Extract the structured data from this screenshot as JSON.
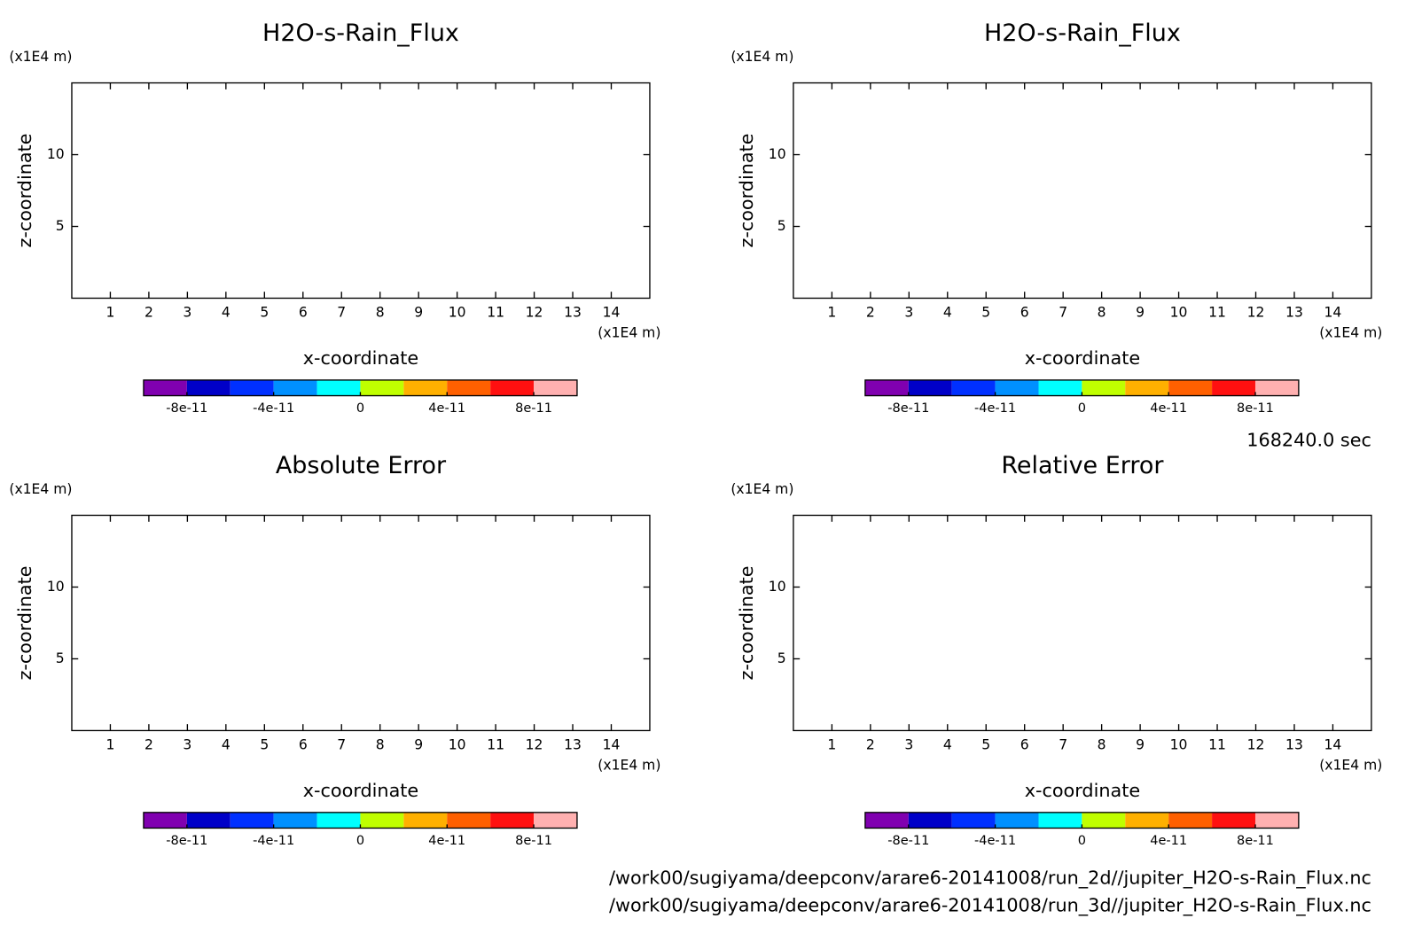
{
  "chart_data": [
    {
      "type": "contour",
      "title": "H2O-s-Rain_Flux",
      "xlabel": "x-coordinate",
      "ylabel": "z-coordinate",
      "xunit": "(x1E4 m)",
      "yunit": "(x1E4 m)",
      "xlim": [
        0,
        15
      ],
      "ylim": [
        0,
        15
      ],
      "xticks": [
        1,
        2,
        3,
        4,
        5,
        6,
        7,
        8,
        9,
        10,
        11,
        12,
        13,
        14
      ],
      "yticks": [
        5,
        10
      ],
      "colorbar": {
        "levels": [
          -1e-10,
          -8e-11,
          -6e-11,
          -4e-11,
          -2e-11,
          0,
          2e-11,
          4e-11,
          6e-11,
          8e-11,
          1e-10
        ],
        "colors": [
          "#8000b0",
          "#0000c8",
          "#0030ff",
          "#0090ff",
          "#00ffff",
          "#c0ff00",
          "#ffb000",
          "#ff6000",
          "#ff1010",
          "#ffb0b0"
        ],
        "ticks": [
          -8e-11,
          -4e-11,
          0,
          4e-11,
          8e-11
        ]
      }
    },
    {
      "type": "contour",
      "title": "H2O-s-Rain_Flux",
      "xlabel": "x-coordinate",
      "ylabel": "z-coordinate",
      "xunit": "(x1E4 m)",
      "yunit": "(x1E4 m)",
      "xlim": [
        0,
        15
      ],
      "ylim": [
        0,
        15
      ],
      "xticks": [
        1,
        2,
        3,
        4,
        5,
        6,
        7,
        8,
        9,
        10,
        11,
        12,
        13,
        14
      ],
      "yticks": [
        5,
        10
      ],
      "colorbar": {
        "levels": [
          -1e-10,
          -8e-11,
          -6e-11,
          -4e-11,
          -2e-11,
          0,
          2e-11,
          4e-11,
          6e-11,
          8e-11,
          1e-10
        ],
        "colors": [
          "#8000b0",
          "#0000c8",
          "#0030ff",
          "#0090ff",
          "#00ffff",
          "#c0ff00",
          "#ffb000",
          "#ff6000",
          "#ff1010",
          "#ffb0b0"
        ],
        "ticks": [
          -8e-11,
          -4e-11,
          0,
          4e-11,
          8e-11
        ]
      }
    },
    {
      "type": "contour",
      "title": "Absolute Error",
      "xlabel": "x-coordinate",
      "ylabel": "z-coordinate",
      "xunit": "(x1E4 m)",
      "yunit": "(x1E4 m)",
      "xlim": [
        0,
        15
      ],
      "ylim": [
        0,
        15
      ],
      "xticks": [
        1,
        2,
        3,
        4,
        5,
        6,
        7,
        8,
        9,
        10,
        11,
        12,
        13,
        14
      ],
      "yticks": [
        5,
        10
      ],
      "colorbar": {
        "levels": [
          -1e-10,
          -8e-11,
          -6e-11,
          -4e-11,
          -2e-11,
          0,
          2e-11,
          4e-11,
          6e-11,
          8e-11,
          1e-10
        ],
        "colors": [
          "#8000b0",
          "#0000c8",
          "#0030ff",
          "#0090ff",
          "#00ffff",
          "#c0ff00",
          "#ffb000",
          "#ff6000",
          "#ff1010",
          "#ffb0b0"
        ],
        "ticks": [
          -8e-11,
          -4e-11,
          0,
          4e-11,
          8e-11
        ]
      }
    },
    {
      "type": "contour",
      "title": "Relative Error",
      "xlabel": "x-coordinate",
      "ylabel": "z-coordinate",
      "xunit": "(x1E4 m)",
      "yunit": "(x1E4 m)",
      "xlim": [
        0,
        15
      ],
      "ylim": [
        0,
        15
      ],
      "xticks": [
        1,
        2,
        3,
        4,
        5,
        6,
        7,
        8,
        9,
        10,
        11,
        12,
        13,
        14
      ],
      "yticks": [
        5,
        10
      ],
      "colorbar": {
        "levels": [
          -1e-10,
          -8e-11,
          -6e-11,
          -4e-11,
          -2e-11,
          0,
          2e-11,
          4e-11,
          6e-11,
          8e-11,
          1e-10
        ],
        "colors": [
          "#8000b0",
          "#0000c8",
          "#0030ff",
          "#0090ff",
          "#00ffff",
          "#c0ff00",
          "#ffb000",
          "#ff6000",
          "#ff1010",
          "#ffb0b0"
        ],
        "ticks": [
          -8e-11,
          -4e-11,
          0,
          4e-11,
          8e-11
        ]
      }
    }
  ],
  "footer": {
    "time": "168240.0 sec",
    "files": [
      "/work00/sugiyama/deepconv/arare6-20141008/run_2d//jupiter_H2O-s-Rain_Flux.nc",
      "/work00/sugiyama/deepconv/arare6-20141008/run_3d//jupiter_H2O-s-Rain_Flux.nc"
    ]
  }
}
